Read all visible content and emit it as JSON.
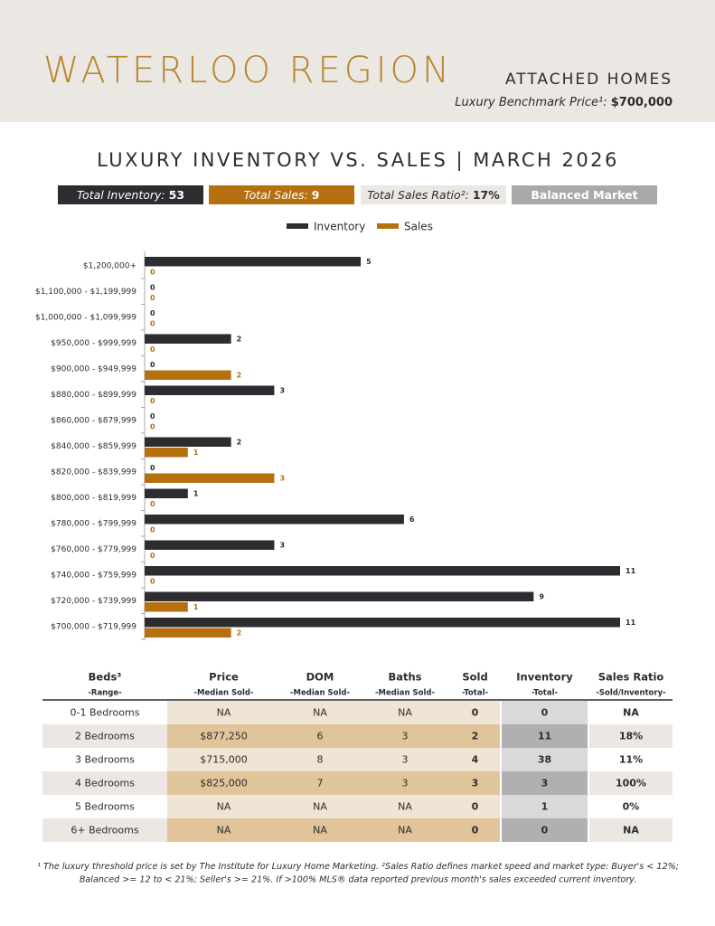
{
  "header": {
    "title": "WATERLOO REGION",
    "subtitle": "ATTACHED HOMES",
    "benchmark_label": "Luxury Benchmark Price¹:",
    "benchmark_value": "$700,000"
  },
  "chart_data": {
    "type": "hbar",
    "title": "LUXURY INVENTORY VS. SALES | MARCH 2026",
    "stats": [
      {
        "label": "Total Inventory:",
        "value": "53"
      },
      {
        "label": "Total Sales:",
        "value": "9"
      },
      {
        "label": "Total Sales Ratio²:",
        "value": "17%"
      },
      {
        "label": "Balanced Market"
      }
    ],
    "categories": [
      "$1,200,000+",
      "$1,100,000 - $1,199,999",
      "$1,000,000 - $1,099,999",
      "$950,000 - $999,999",
      "$900,000 - $949,999",
      "$880,000 - $899,999",
      "$860,000 - $879,999",
      "$840,000 - $859,999",
      "$820,000 - $839,999",
      "$800,000 - $819,999",
      "$780,000 - $799,999",
      "$760,000 - $779,999",
      "$740,000 - $759,999",
      "$720,000 - $739,999",
      "$700,000 - $719,999"
    ],
    "series": [
      {
        "name": "Inventory",
        "color": "#2d2c31",
        "values": [
          5,
          0,
          0,
          2,
          0,
          3,
          0,
          2,
          0,
          1,
          6,
          3,
          11,
          9,
          11
        ]
      },
      {
        "name": "Sales",
        "color": "#b5700f",
        "values": [
          0,
          0,
          0,
          0,
          2,
          0,
          0,
          1,
          3,
          0,
          0,
          0,
          0,
          1,
          2
        ]
      }
    ],
    "xlim": [
      0,
      11
    ]
  },
  "table": {
    "columns": [
      {
        "title": "Beds³",
        "sub": "-Range-"
      },
      {
        "title": "Price",
        "sub": "-Median Sold-"
      },
      {
        "title": "DOM",
        "sub": "-Median Sold-"
      },
      {
        "title": "Baths",
        "sub": "-Median Sold-"
      },
      {
        "title": "Sold",
        "sub": "-Total-"
      },
      {
        "title": "Inventory",
        "sub": "-Total-"
      },
      {
        "title": "Sales Ratio",
        "sub": "-Sold/Inventory-"
      }
    ],
    "rows": [
      [
        "0-1 Bedrooms",
        "NA",
        "NA",
        "NA",
        "0",
        "0",
        "NA"
      ],
      [
        "2 Bedrooms",
        "$877,250",
        "6",
        "3",
        "2",
        "11",
        "18%"
      ],
      [
        "3 Bedrooms",
        "$715,000",
        "8",
        "3",
        "4",
        "38",
        "11%"
      ],
      [
        "4 Bedrooms",
        "$825,000",
        "7",
        "3",
        "3",
        "3",
        "100%"
      ],
      [
        "5 Bedrooms",
        "NA",
        "NA",
        "NA",
        "0",
        "1",
        "0%"
      ],
      [
        "6+ Bedrooms",
        "NA",
        "NA",
        "NA",
        "0",
        "0",
        "NA"
      ]
    ]
  },
  "footnote": [
    "¹ The luxury threshold price is set by The Institute for Luxury Home Marketing. ²Sales Ratio defines market speed and market type: Buyer's < 12%;",
    "Balanced >= 12 to < 21%; Seller's >= 21%. If >100% MLS® data reported previous month's sales exceeded current inventory."
  ]
}
